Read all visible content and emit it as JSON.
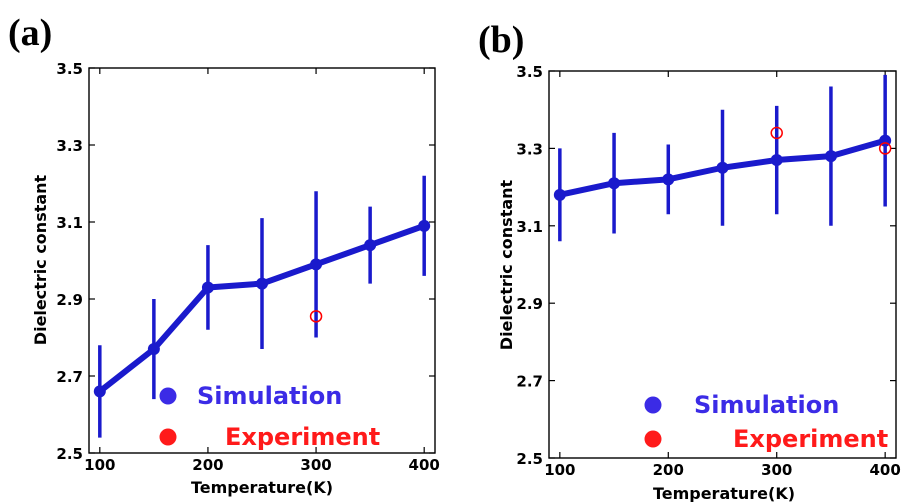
{
  "colors": {
    "simulation": "#1a1acc",
    "experiment": "#ff0000",
    "legend_simulation_dot": "#3b2be6",
    "legend_experiment_dot": "#ff1a1a",
    "axis": "#000000"
  },
  "chart_data": [
    {
      "panel_label": "(a)",
      "type": "line",
      "xlabel": "Temperature(K)",
      "ylabel": "Dielectric constant",
      "xlim": [
        90,
        410
      ],
      "ylim": [
        2.5,
        3.5
      ],
      "xticks": [
        100,
        200,
        300,
        400
      ],
      "yticks": [
        2.5,
        2.7,
        2.9,
        3.1,
        3.3,
        3.5
      ],
      "ytick_labels": [
        "2.5",
        "2.7",
        "2.9",
        "3.1",
        "3.3",
        "3.5"
      ],
      "grid": false,
      "legend_position": "bottom-center",
      "series": [
        {
          "name": "Simulation",
          "marker": "filled-circle",
          "x": [
            100,
            150,
            200,
            250,
            300,
            350,
            400
          ],
          "y": [
            2.66,
            2.77,
            2.93,
            2.94,
            2.99,
            3.04,
            3.09
          ],
          "err_low": [
            2.54,
            2.64,
            2.82,
            2.77,
            2.8,
            2.94,
            2.96
          ],
          "err_high": [
            2.78,
            2.9,
            3.04,
            3.11,
            3.18,
            3.14,
            3.22
          ]
        },
        {
          "name": "Experiment",
          "marker": "open-circle",
          "x": [
            300
          ],
          "y": [
            2.855
          ]
        }
      ]
    },
    {
      "panel_label": "(b)",
      "type": "line",
      "xlabel": "Temperature(K)",
      "ylabel": "Dielectric constant",
      "xlim": [
        90,
        410
      ],
      "ylim": [
        2.5,
        3.5
      ],
      "xticks": [
        100,
        200,
        300,
        400
      ],
      "yticks": [
        2.5,
        2.7,
        2.9,
        3.1,
        3.3,
        3.5
      ],
      "ytick_labels": [
        "2.5",
        "2.7",
        "2.9",
        "3.1",
        "3.3",
        "3.5"
      ],
      "grid": false,
      "legend_position": "bottom-center",
      "series": [
        {
          "name": "Simulation",
          "marker": "filled-circle",
          "x": [
            100,
            150,
            200,
            250,
            300,
            350,
            400
          ],
          "y": [
            3.18,
            3.21,
            3.22,
            3.25,
            3.27,
            3.28,
            3.32
          ],
          "err_low": [
            3.06,
            3.08,
            3.13,
            3.1,
            3.13,
            3.1,
            3.15
          ],
          "err_high": [
            3.3,
            3.34,
            3.31,
            3.4,
            3.41,
            3.46,
            3.49
          ]
        },
        {
          "name": "Experiment",
          "marker": "open-circle",
          "x": [
            300,
            400
          ],
          "y": [
            3.34,
            3.3
          ]
        }
      ]
    }
  ]
}
